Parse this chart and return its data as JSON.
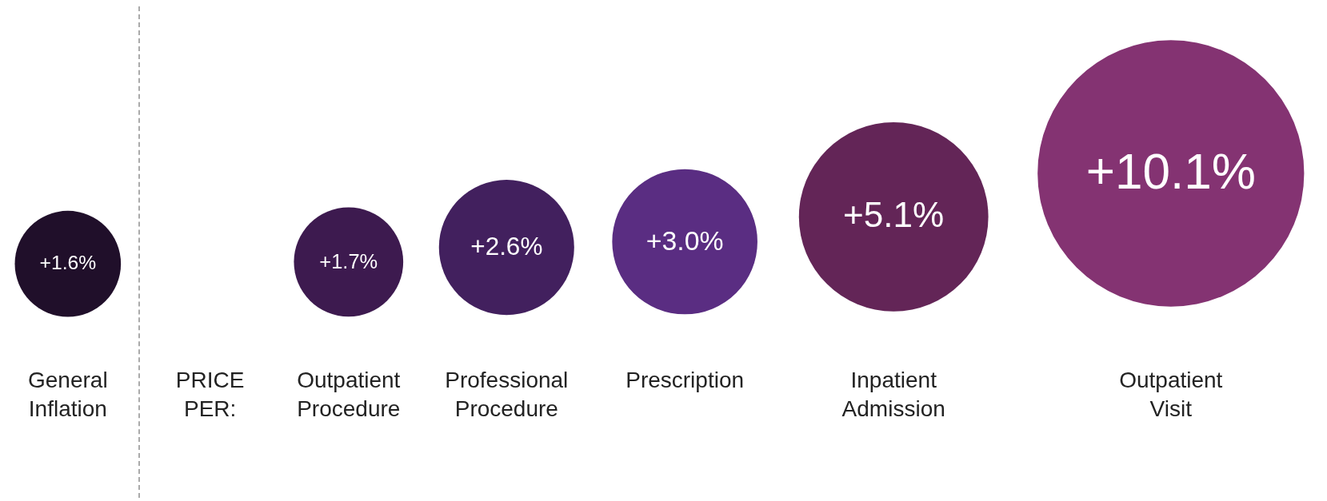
{
  "chart_data": {
    "type": "other",
    "categories": [
      "General Inflation",
      "Outpatient Procedure",
      "Professional Procedure",
      "Prescription",
      "Inpatient Admission",
      "Outpatient Visit"
    ],
    "values": [
      1.6,
      1.7,
      2.6,
      3.0,
      5.1,
      10.1
    ],
    "colors": [
      "#200f2a",
      "#3d1a4f",
      "#42205e",
      "#5a2d82",
      "#632557",
      "#843372"
    ],
    "value_labels": [
      "+1.6%",
      "+1.7%",
      "+2.6%",
      "+3.0%",
      "+5.1%",
      "+10.1%"
    ],
    "annotations": [
      "PRICE PER:"
    ]
  }
}
